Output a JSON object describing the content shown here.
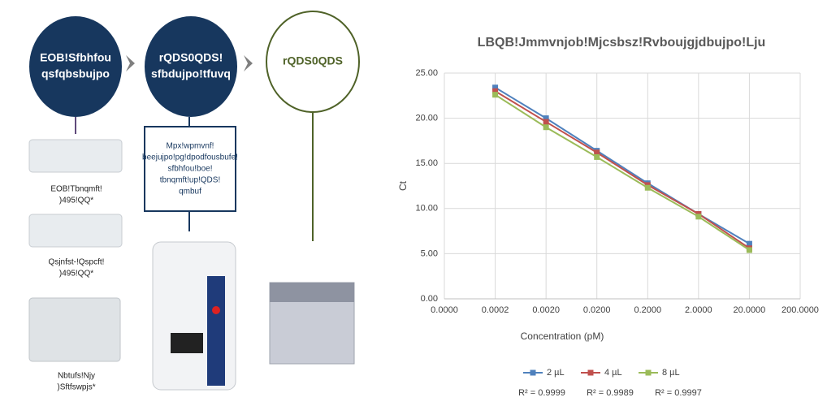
{
  "diagram": {
    "steps": [
      {
        "lines": [
          "EOB!Sfbhfou",
          "qsfqbsbujpo"
        ]
      },
      {
        "lines": [
          "rQDS0QDS!",
          "sfbdujpo!tfuvq"
        ]
      },
      {
        "lines": [
          "rQDS0QDS"
        ]
      }
    ],
    "note": {
      "lines": [
        "Mpx!wpmvnf!",
        "beejujpo!pg!dpodfousbufe!",
        "sfbhfou!boe!",
        "tbnqmft!up!QDS!",
        "qmbuf"
      ]
    },
    "items": [
      {
        "lines": [
          "EOB!Tbnqmft!",
          ")495!QQ*"
        ]
      },
      {
        "lines": [
          "Qsjnfst-!Qspcft!",
          ")495!QQ*"
        ]
      },
      {
        "lines": [
          "Nbtufs!Njy",
          ")Sftfswpjs*"
        ]
      }
    ]
  },
  "chart_data": {
    "type": "line",
    "title": "LBQB!Jmmvnjob!Mjcsbsz!Rvboujgjdbujpo!Lju",
    "x_label": "Concentration (pM)",
    "y_label": "Ct",
    "x_scale": "log",
    "grid": true,
    "xlim": [
      2e-05,
      200
    ],
    "xticks": [
      {
        "value": 2e-05,
        "label": "0.0000"
      },
      0.0002,
      {
        "value": 0.002,
        "label": "0.0020"
      },
      {
        "value": 0.02,
        "label": "0.0200"
      },
      {
        "value": 0.2,
        "label": "0.2000"
      },
      {
        "value": 2,
        "label": "2.0000"
      },
      {
        "value": 20,
        "label": "20.0000"
      },
      {
        "value": 200,
        "label": "200.0000"
      }
    ],
    "ylim": [
      0,
      25
    ],
    "yticks": [
      {
        "value": 0,
        "label": "0.00"
      },
      {
        "value": 5,
        "label": "5.00"
      },
      {
        "value": 10,
        "label": "10.00"
      },
      {
        "value": 15,
        "label": "15.00"
      },
      {
        "value": 20,
        "label": "20.00"
      },
      {
        "value": 25,
        "label": "25.00"
      }
    ],
    "x": [
      0.0002,
      0.002,
      0.02,
      0.2,
      2,
      20
    ],
    "series": [
      {
        "name": "2 µL",
        "color": "#4f81bd",
        "values": [
          23.4,
          20.0,
          16.4,
          12.8,
          9.4,
          6.1
        ]
      },
      {
        "name": "4 µL",
        "color": "#c0504d",
        "values": [
          23.0,
          19.6,
          16.2,
          12.6,
          9.4,
          5.6
        ]
      },
      {
        "name": "8 µL",
        "color": "#9bbb59",
        "values": [
          22.6,
          19.0,
          15.7,
          12.3,
          9.1,
          5.4
        ]
      }
    ],
    "legend": "bottom",
    "annotations": [
      "R² = 0.9999",
      "R² = 0.9989",
      "R² = 0.9997"
    ]
  }
}
